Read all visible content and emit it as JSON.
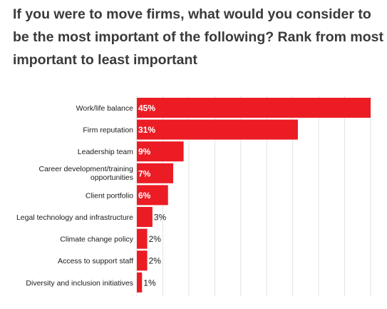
{
  "chart_data": {
    "type": "bar",
    "orientation": "horizontal",
    "title": "If you were to move firms, what would you consider to be the most important of the following? Rank from most important to least important",
    "categories": [
      "Work/life balance",
      "Firm reputation",
      "Leadership team",
      "Career development/training opportunities",
      "Client portfolio",
      "Legal technology and infrastructure",
      "Climate change policy",
      "Access to support staff",
      "Diversity and inclusion initiatives"
    ],
    "values": [
      45,
      31,
      9,
      7,
      6,
      3,
      2,
      2,
      1
    ],
    "value_labels": [
      "45%",
      "31%",
      "9%",
      "7%",
      "6%",
      "3%",
      "2%",
      "2%",
      "1%"
    ],
    "xlim": [
      0,
      45
    ],
    "grid": true,
    "bar_color": "#ec1c24"
  }
}
